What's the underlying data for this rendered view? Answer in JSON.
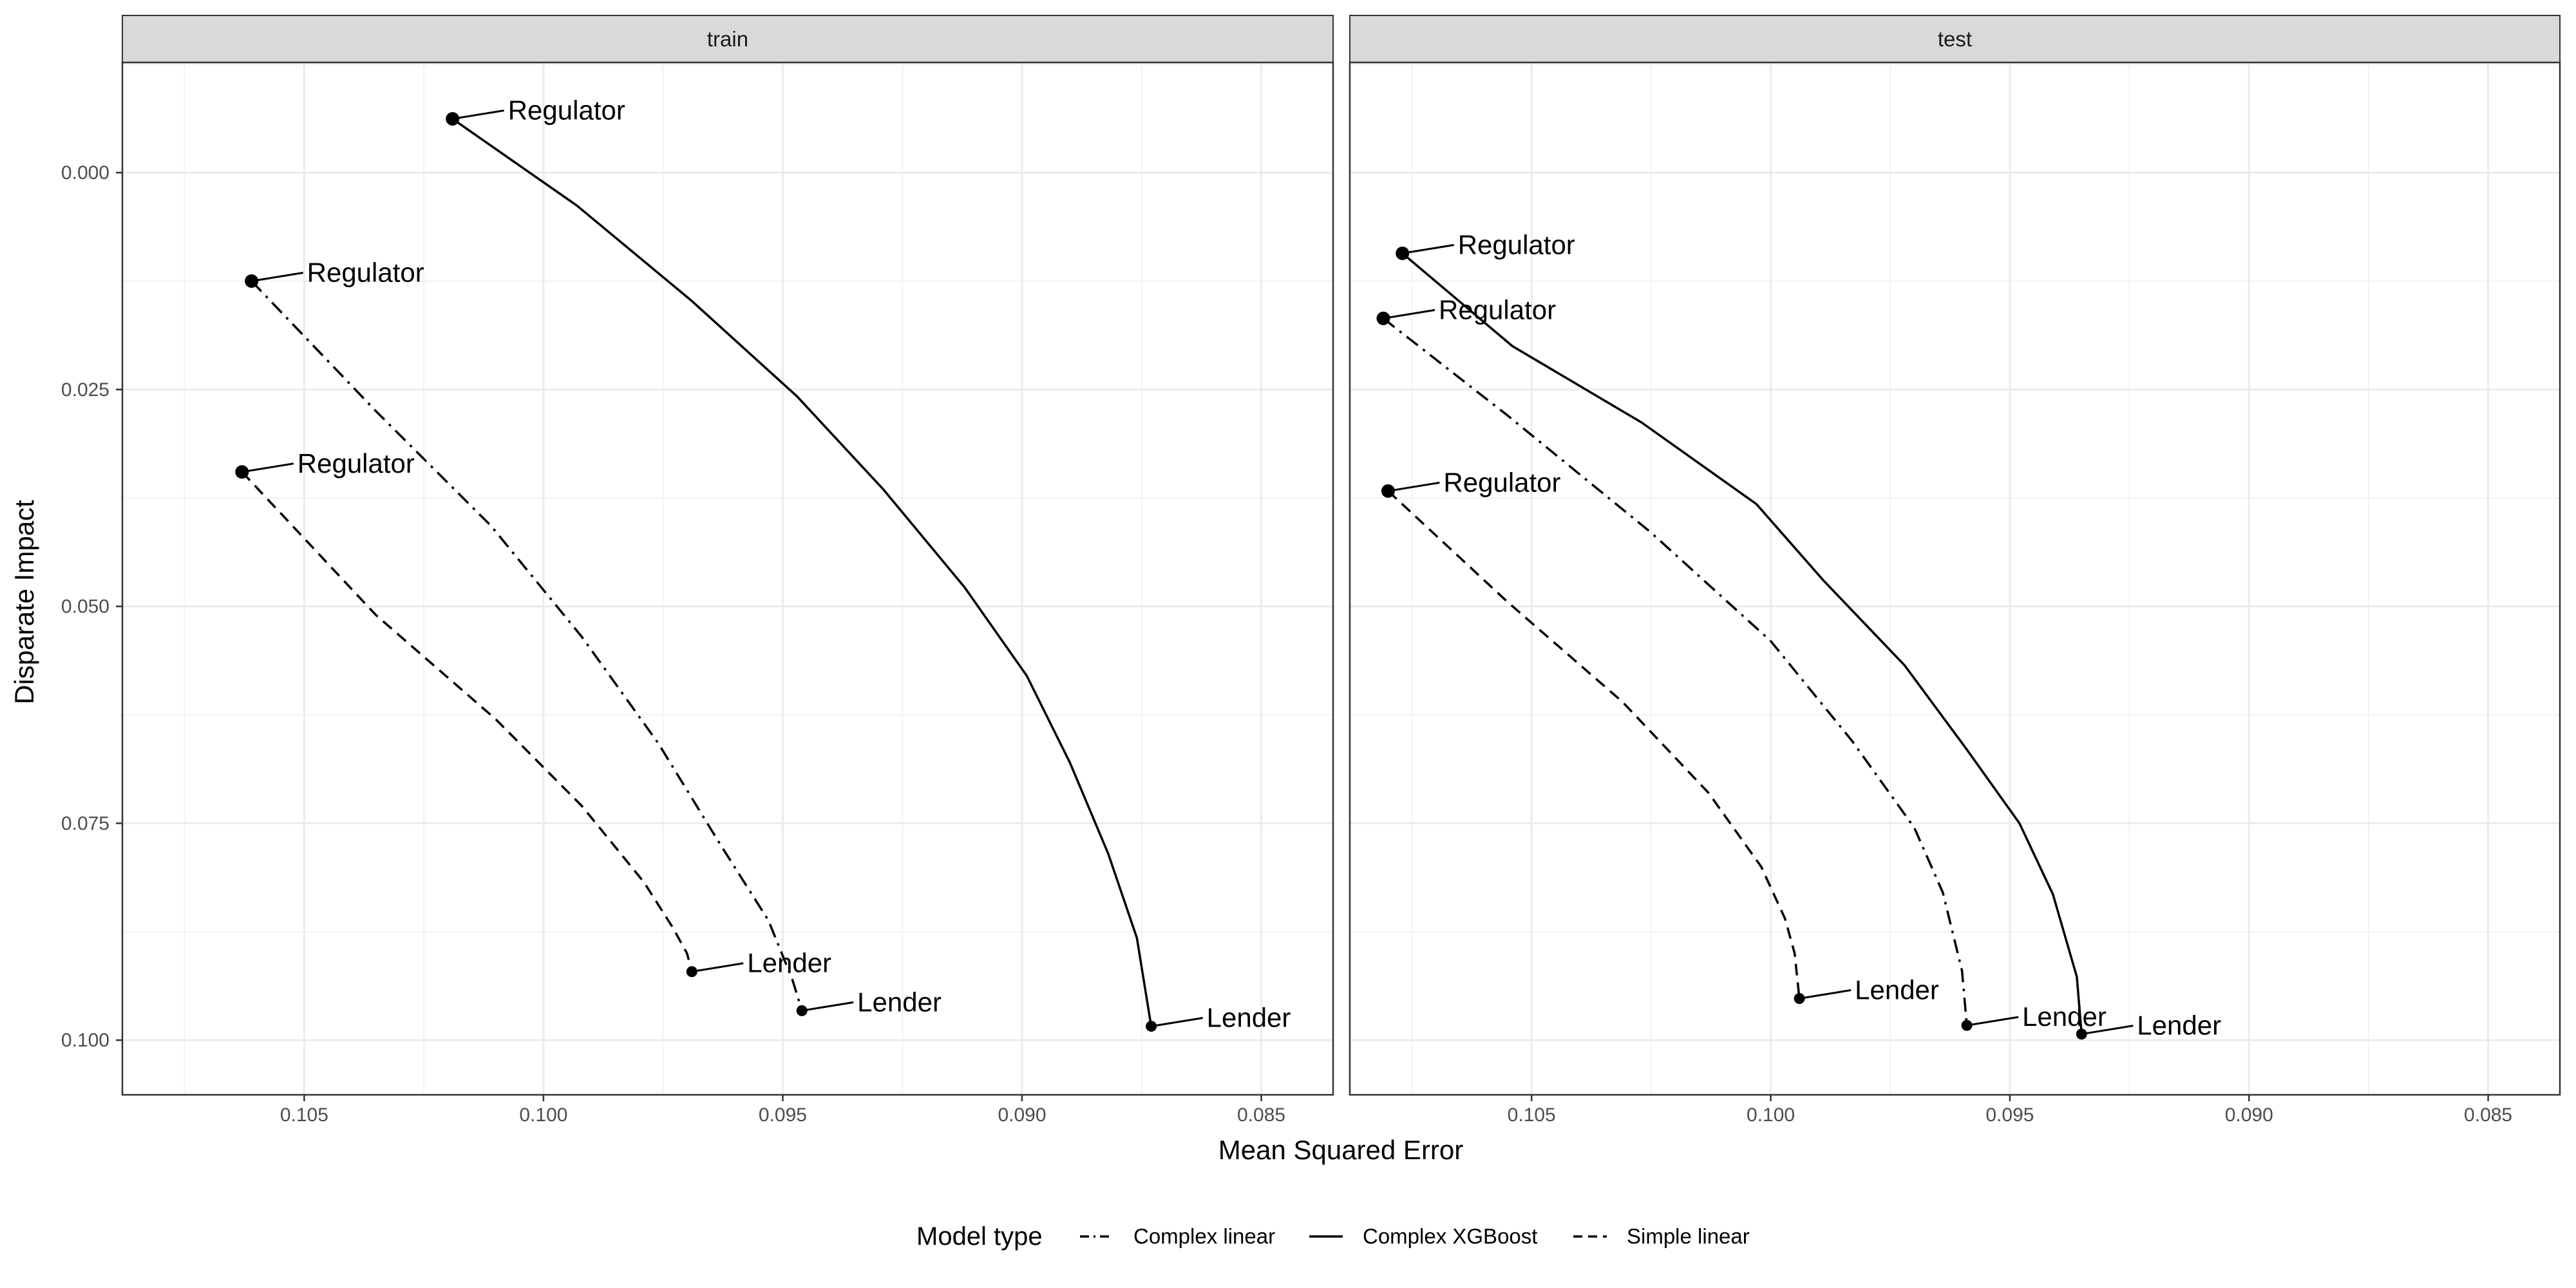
{
  "chart_data": {
    "type": "line",
    "xlabel": "Mean Squared Error",
    "ylabel": "Disparate Impact",
    "x_reversed": true,
    "y_reversed": true,
    "xlim": [
      0.1088,
      0.0835
    ],
    "ylim": [
      -0.0127,
      0.1063
    ],
    "x_ticks": [
      0.105,
      0.1,
      0.095,
      0.09,
      0.085
    ],
    "x_tick_labels": [
      "0.105",
      "0.100",
      "0.095",
      "0.090",
      "0.085"
    ],
    "y_ticks": [
      0.0,
      0.025,
      0.05,
      0.075,
      0.1
    ],
    "y_tick_labels": [
      "0.000",
      "0.025",
      "0.050",
      "0.075",
      "0.100"
    ],
    "grid": true,
    "legend": {
      "title": "Model type",
      "position": "bottom",
      "entries": [
        {
          "name": "Complex linear",
          "linestyle": "dashdot"
        },
        {
          "name": "Complex XGBoost",
          "linestyle": "solid"
        },
        {
          "name": "Simple linear",
          "linestyle": "dashed"
        }
      ]
    },
    "panels": [
      {
        "name": "train",
        "series": [
          {
            "name": "Complex XGBoost",
            "linestyle": "solid",
            "x": [
              0.1019,
              0.0993,
              0.0969,
              0.0947,
              0.0929,
              0.0912,
              0.0899,
              0.089,
              0.0882,
              0.0876,
              0.0873
            ],
            "y": [
              -0.0062,
              0.0038,
              0.0148,
              0.0258,
              0.0365,
              0.0478,
              0.058,
              0.068,
              0.0785,
              0.0882,
              0.0984
            ]
          },
          {
            "name": "Complex linear",
            "linestyle": "dashdot",
            "x": [
              0.1061,
              0.1035,
              0.1011,
              0.0992,
              0.0976,
              0.0963,
              0.0953,
              0.0948,
              0.0946
            ],
            "y": [
              0.0125,
              0.0275,
              0.0407,
              0.0535,
              0.0658,
              0.0775,
              0.0862,
              0.093,
              0.0966
            ]
          },
          {
            "name": "Simple linear",
            "linestyle": "dashed",
            "x": [
              0.1063,
              0.1035,
              0.101,
              0.0992,
              0.0979,
              0.0973,
              0.097,
              0.0969
            ],
            "y": [
              0.0345,
              0.051,
              0.063,
              0.073,
              0.0818,
              0.087,
              0.09,
              0.0921
            ]
          }
        ],
        "points": [
          {
            "label": "Regulator",
            "x": 0.1019,
            "y": -0.0062
          },
          {
            "label": "Lender",
            "x": 0.0873,
            "y": 0.0984
          },
          {
            "label": "Regulator",
            "x": 0.1061,
            "y": 0.0125
          },
          {
            "label": "Lender",
            "x": 0.0946,
            "y": 0.0966
          },
          {
            "label": "Regulator",
            "x": 0.1063,
            "y": 0.0345
          },
          {
            "label": "Lender",
            "x": 0.0969,
            "y": 0.0921
          }
        ]
      },
      {
        "name": "test",
        "series": [
          {
            "name": "Complex XGBoost",
            "linestyle": "solid",
            "x": [
              0.1077,
              0.1054,
              0.1027,
              0.1003,
              0.0989,
              0.0972,
              0.0959,
              0.0948,
              0.0941,
              0.0936,
              0.0935
            ],
            "y": [
              0.0093,
              0.02,
              0.0288,
              0.0382,
              0.047,
              0.0568,
              0.0665,
              0.075,
              0.0832,
              0.0927,
              0.0993
            ]
          },
          {
            "name": "Complex linear",
            "linestyle": "dashdot",
            "x": [
              0.1081,
              0.1055,
              0.1025,
              0.1,
              0.0983,
              0.097,
              0.0964,
              0.096,
              0.0959
            ],
            "y": [
              0.0168,
              0.028,
              0.0415,
              0.054,
              0.0655,
              0.0755,
              0.083,
              0.092,
              0.0983
            ]
          },
          {
            "name": "Simple linear",
            "linestyle": "dashed",
            "x": [
              0.108,
              0.1055,
              0.1031,
              0.1013,
              0.1002,
              0.0997,
              0.0995,
              0.0994
            ],
            "y": [
              0.0367,
              0.0495,
              0.061,
              0.0715,
              0.08,
              0.086,
              0.09,
              0.0952
            ]
          }
        ],
        "points": [
          {
            "label": "Regulator",
            "x": 0.1077,
            "y": 0.0093
          },
          {
            "label": "Lender",
            "x": 0.0935,
            "y": 0.0993
          },
          {
            "label": "Regulator",
            "x": 0.1081,
            "y": 0.0168
          },
          {
            "label": "Lender",
            "x": 0.0959,
            "y": 0.0983
          },
          {
            "label": "Regulator",
            "x": 0.108,
            "y": 0.0367
          },
          {
            "label": "Lender",
            "x": 0.0994,
            "y": 0.0952
          }
        ]
      }
    ]
  }
}
